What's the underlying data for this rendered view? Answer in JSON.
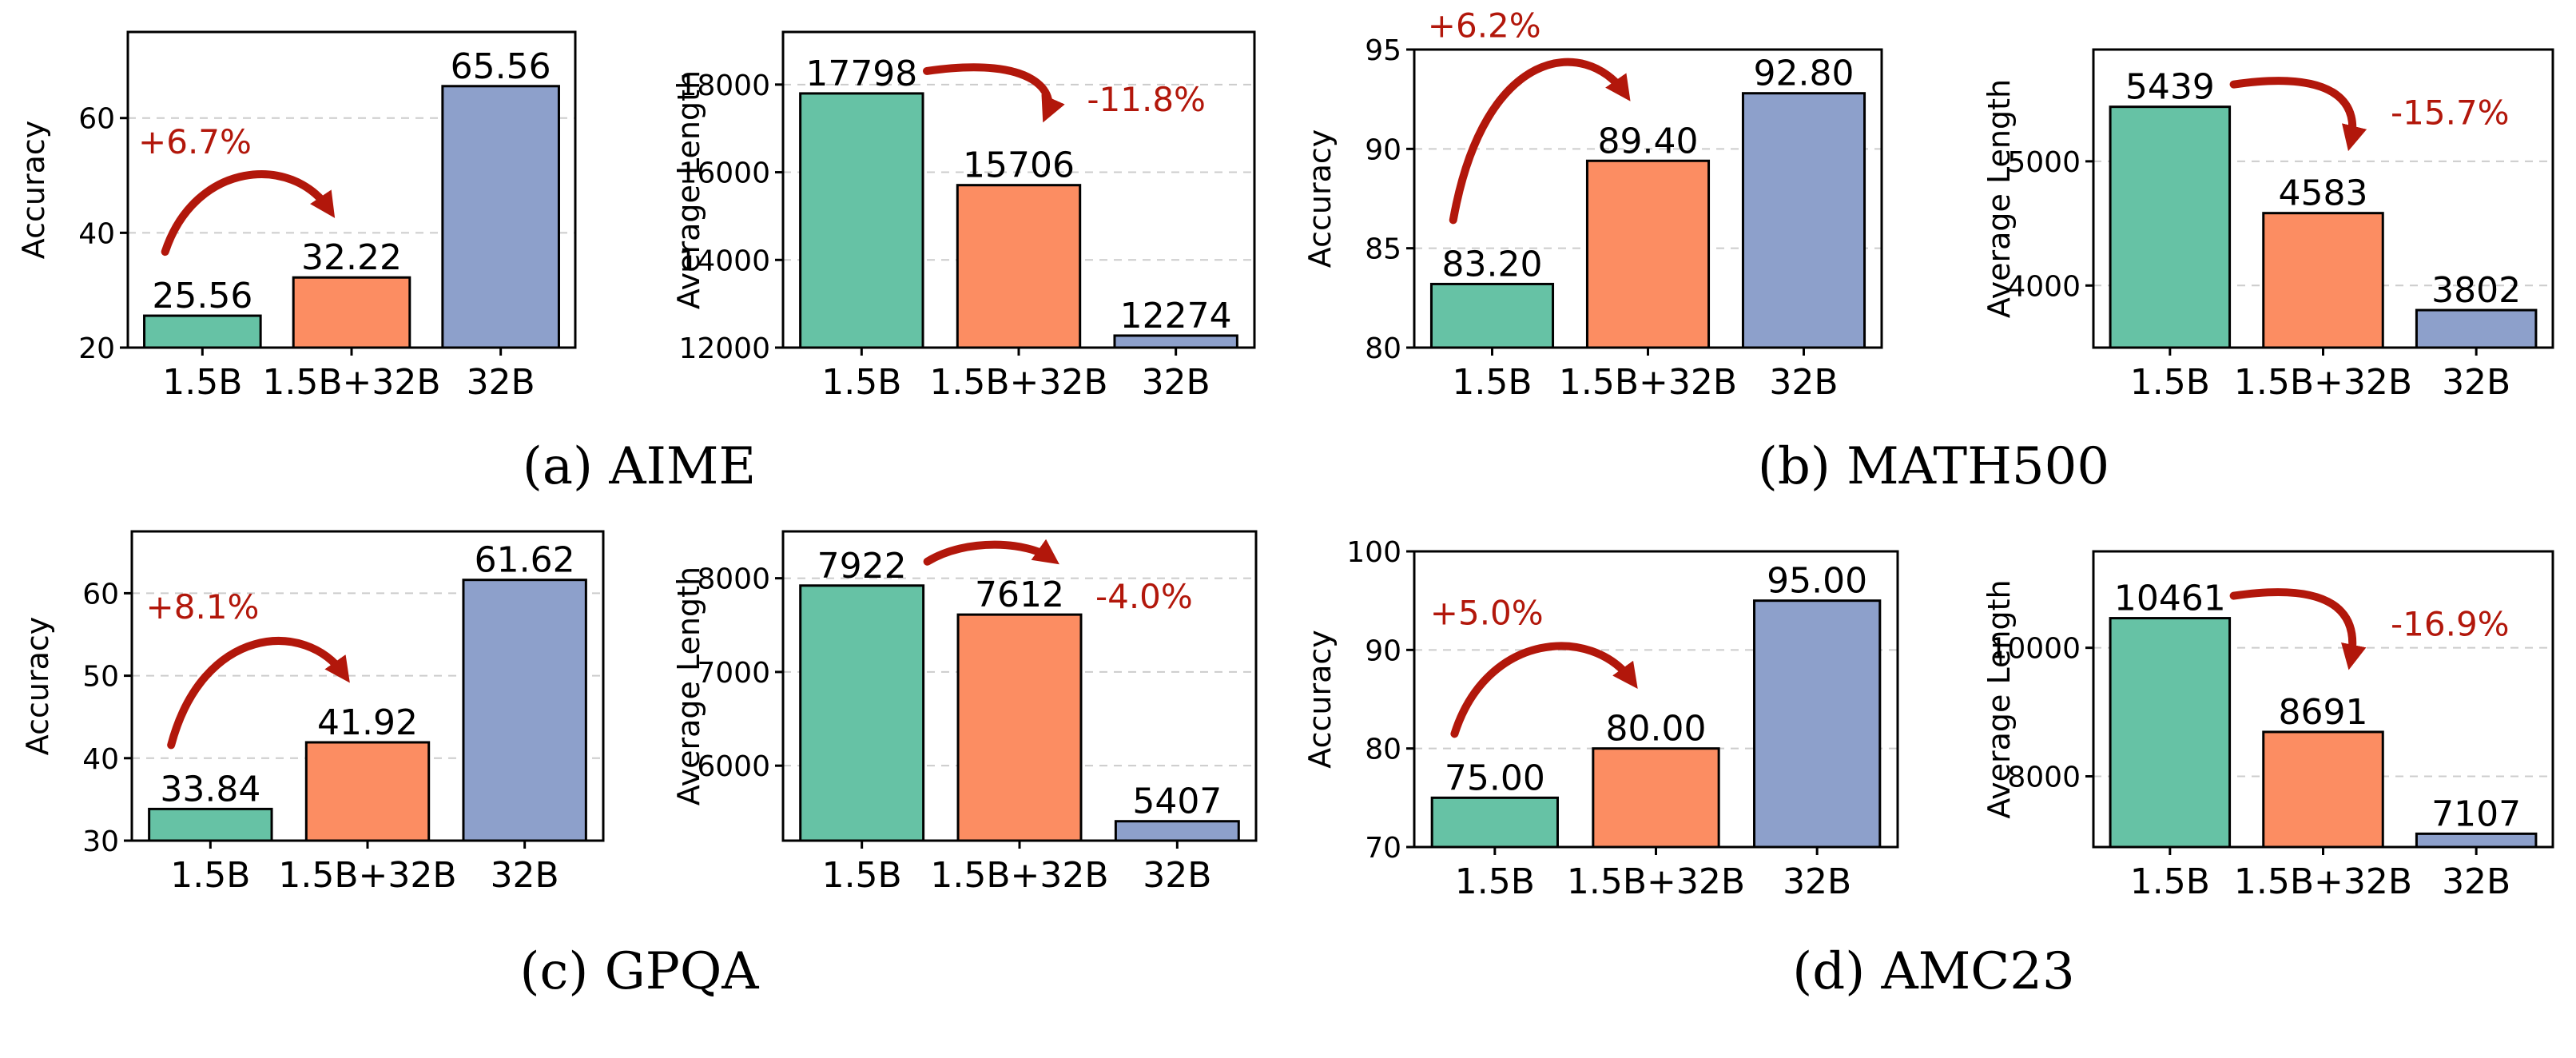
{
  "style": {
    "bar_colors": [
      "#66c2a5",
      "#fc8d62",
      "#8da0cb"
    ],
    "annotation_color": "#b2170b",
    "grid": "dashed light gray, y-axis only"
  },
  "captions": [
    "(a) AIME",
    "(b) MATH500",
    "(c) GPQA",
    "(d) AMC23"
  ],
  "chart_data": [
    {
      "type": "bar",
      "panel": "a",
      "caption": "(a) AIME",
      "categories": [
        "1.5B",
        "1.5B+32B",
        "32B"
      ],
      "values": [
        25.56,
        32.22,
        65.56
      ],
      "value_labels": [
        "25.56",
        "32.22",
        "65.56"
      ],
      "ylabel": "Accuracy",
      "ylim": [
        20,
        75
      ],
      "yticks": [
        20,
        40,
        60
      ],
      "ytick_labels": [
        "20",
        "40",
        "60"
      ],
      "annotation": {
        "text": "+6.7%",
        "from": 0,
        "to": 1,
        "direction": "up"
      }
    },
    {
      "type": "bar",
      "panel": "a",
      "caption": "(a) AIME",
      "categories": [
        "1.5B",
        "1.5B+32B",
        "32B"
      ],
      "values": [
        17798,
        15706,
        12274
      ],
      "value_labels": [
        "17798",
        "15706",
        "12274"
      ],
      "ylabel": "Average Length",
      "ylim": [
        12000,
        19200
      ],
      "yticks": [
        12000,
        14000,
        16000,
        18000
      ],
      "ytick_labels": [
        "12000",
        "14000",
        "16000",
        "18000"
      ],
      "annotation": {
        "text": "-11.8%",
        "from": 0,
        "to": 1,
        "direction": "down"
      }
    },
    {
      "type": "bar",
      "panel": "b",
      "caption": "(b) MATH500",
      "categories": [
        "1.5B",
        "1.5B+32B",
        "32B"
      ],
      "values": [
        83.2,
        89.4,
        92.8
      ],
      "value_labels": [
        "83.20",
        "89.40",
        "92.80"
      ],
      "ylabel": "Accuracy",
      "ylim": [
        80,
        95
      ],
      "yticks": [
        80,
        85,
        90,
        95
      ],
      "ytick_labels": [
        "80",
        "85",
        "90",
        "95"
      ],
      "annotation": {
        "text": "+6.2%",
        "from": 0,
        "to": 1,
        "direction": "up"
      }
    },
    {
      "type": "bar",
      "panel": "b",
      "caption": "(b) MATH500",
      "categories": [
        "1.5B",
        "1.5B+32B",
        "32B"
      ],
      "values": [
        5439,
        4583,
        3802
      ],
      "value_labels": [
        "5439",
        "4583",
        "3802"
      ],
      "ylabel": "Average Length",
      "ylim": [
        3500,
        5900
      ],
      "yticks": [
        4000,
        5000
      ],
      "ytick_labels": [
        "4000",
        "5000"
      ],
      "annotation": {
        "text": "-15.7%",
        "from": 0,
        "to": 1,
        "direction": "down"
      }
    },
    {
      "type": "bar",
      "panel": "c",
      "caption": "(c) GPQA",
      "categories": [
        "1.5B",
        "1.5B+32B",
        "32B"
      ],
      "values": [
        33.84,
        41.92,
        61.62
      ],
      "value_labels": [
        "33.84",
        "41.92",
        "61.62"
      ],
      "ylabel": "Accuracy",
      "ylim": [
        30,
        67.5
      ],
      "yticks": [
        30,
        40,
        50,
        60
      ],
      "ytick_labels": [
        "30",
        "40",
        "50",
        "60"
      ],
      "annotation": {
        "text": "+8.1%",
        "from": 0,
        "to": 1,
        "direction": "up"
      }
    },
    {
      "type": "bar",
      "panel": "c",
      "caption": "(c) GPQA",
      "categories": [
        "1.5B",
        "1.5B+32B",
        "32B"
      ],
      "values": [
        7922,
        7612,
        5407
      ],
      "value_labels": [
        "7922",
        "7612",
        "5407"
      ],
      "ylabel": "Average Length",
      "ylim": [
        5200,
        8500
      ],
      "yticks": [
        6000,
        7000,
        8000
      ],
      "ytick_labels": [
        "6000",
        "7000",
        "8000"
      ],
      "annotation": {
        "text": "-4.0%",
        "from": 0,
        "to": 1,
        "direction": "flat"
      }
    },
    {
      "type": "bar",
      "panel": "d",
      "caption": "(d) AMC23",
      "categories": [
        "1.5B",
        "1.5B+32B",
        "32B"
      ],
      "values": [
        75.0,
        80.0,
        95.0
      ],
      "value_labels": [
        "75.00",
        "80.00",
        "95.00"
      ],
      "ylabel": "Accuracy",
      "ylim": [
        70,
        100
      ],
      "yticks": [
        70,
        80,
        90,
        100
      ],
      "ytick_labels": [
        "70",
        "80",
        "90",
        "100"
      ],
      "annotation": {
        "text": "+5.0%",
        "from": 0,
        "to": 1,
        "direction": "up"
      }
    },
    {
      "type": "bar",
      "panel": "d",
      "caption": "(d) AMC23",
      "categories": [
        "1.5B",
        "1.5B+32B",
        "32B"
      ],
      "values": [
        10461,
        8691,
        7107
      ],
      "value_labels": [
        "10461",
        "8691",
        "7107"
      ],
      "ylabel": "Average Length",
      "ylim": [
        6900,
        11500
      ],
      "yticks": [
        8000,
        10000
      ],
      "ytick_labels": [
        "8000",
        "10000"
      ],
      "annotation": {
        "text": "-16.9%",
        "from": 0,
        "to": 1,
        "direction": "down"
      }
    }
  ]
}
